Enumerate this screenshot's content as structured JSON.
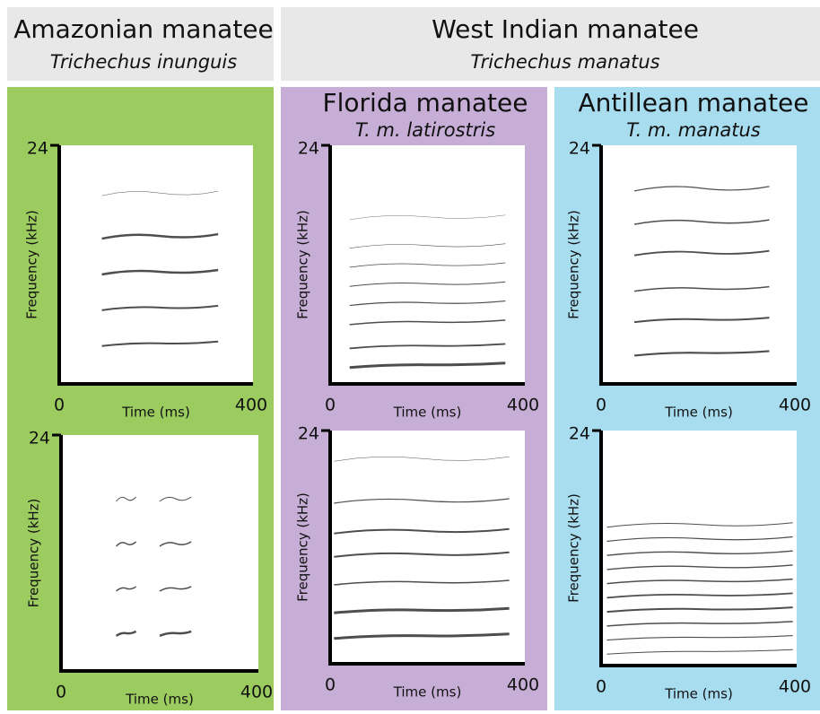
{
  "columns": [
    {
      "title": "Amazonian manatee",
      "subtitle": "Trichechus inunguis"
    },
    {
      "title": "West Indian manatee",
      "subtitle": "Trichechus manatus"
    }
  ],
  "subgroups": [
    {
      "title": "Florida manatee",
      "subtitle": "T. m. latirostris"
    },
    {
      "title": "Antillean manatee",
      "subtitle": "T. m. manatus"
    }
  ],
  "panels": [
    {
      "y_max": "24",
      "x_min": "0",
      "x_max": "400",
      "x_label": "Time (ms)",
      "y_label": "Frequency (kHz)"
    },
    {
      "y_max": "24",
      "x_min": "0",
      "x_max": "400",
      "x_label": "Time (ms)",
      "y_label": "Frequency (kHz)"
    },
    {
      "y_max": "24",
      "x_min": "0",
      "x_max": "400",
      "x_label": "Time (ms)",
      "y_label": "Frequency (kHz)"
    },
    {
      "y_max": "24",
      "x_min": "0",
      "x_max": "400",
      "x_label": "Time (ms)",
      "y_label": "Frequency (kHz)"
    },
    {
      "y_max": "24",
      "x_min": "0",
      "x_max": "400",
      "x_label": "Time (ms)",
      "y_label": "Frequency (kHz)"
    },
    {
      "y_max": "24",
      "x_min": "0",
      "x_max": "400",
      "x_label": "Time (ms)",
      "y_label": "Frequency (kHz)"
    }
  ]
}
